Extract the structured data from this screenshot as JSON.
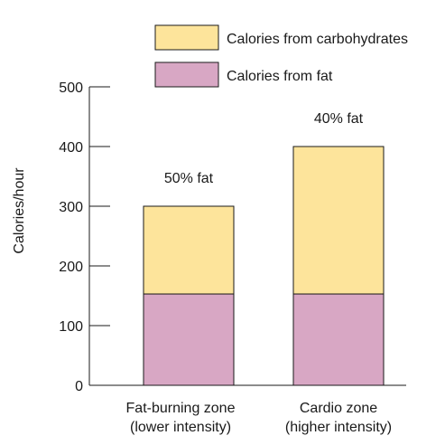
{
  "chart_data": {
    "type": "bar",
    "stacked": true,
    "categories": [
      [
        "Fat-burning zone",
        "(lower intensity)"
      ],
      [
        "Cardio zone",
        "(higher intensity)"
      ]
    ],
    "series": [
      {
        "name": "Calories from fat",
        "values": [
          153,
          153
        ],
        "color": "#d8a7c4"
      },
      {
        "name": "Calories from carbohydrates",
        "values": [
          147,
          247
        ],
        "color": "#fde49b"
      }
    ],
    "annotations": [
      "50% fat",
      "40% fat"
    ],
    "ylabel": "Calories/hour",
    "ylim": [
      0,
      500
    ],
    "yticks": [
      0,
      100,
      200,
      300,
      400,
      500
    ],
    "legend_order": [
      "Calories from carbohydrates",
      "Calories from fat"
    ],
    "legend_position": "top-right",
    "grid": false
  }
}
